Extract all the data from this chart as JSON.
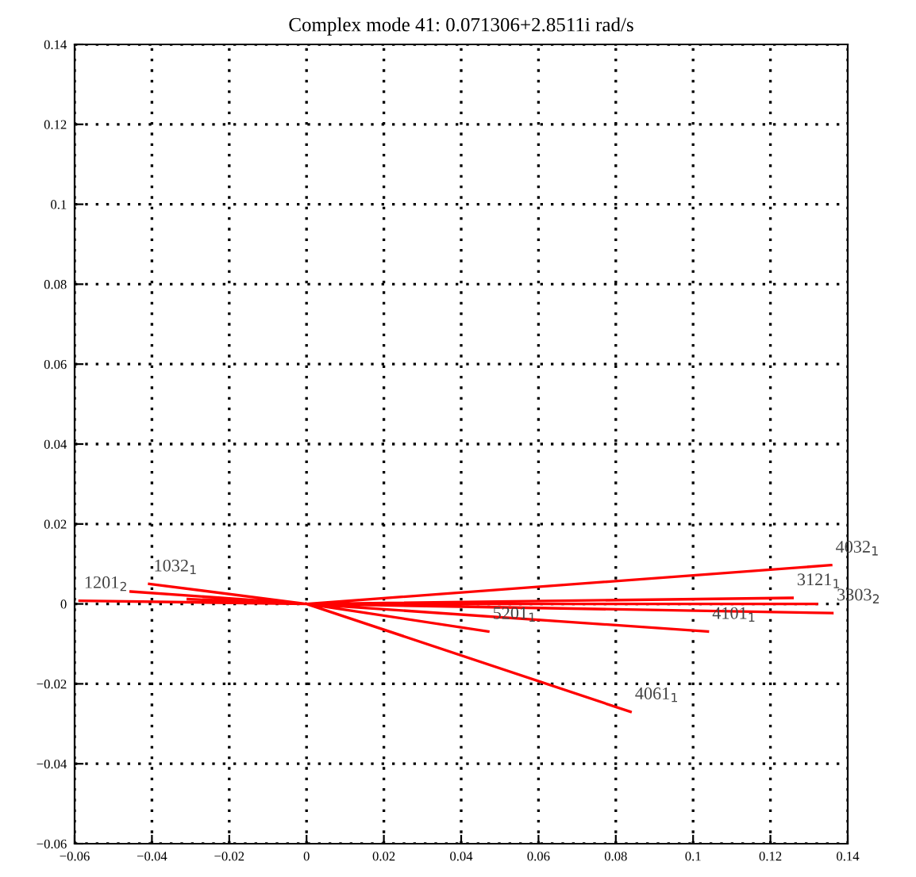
{
  "chart_data": {
    "type": "line",
    "title": "Complex mode 41: 0.071306+2.8511i rad/s",
    "series": [
      {
        "color": "#ff0000",
        "x": [
          0,
          0.1357,
          null,
          0,
          0.1257,
          null,
          0,
          0.132,
          null,
          0,
          0.136,
          null,
          0,
          0.1038,
          null,
          0,
          0.047,
          null,
          0,
          0.0838,
          null,
          0,
          -0.0587,
          null,
          0,
          -0.0407,
          null,
          0,
          -0.0455,
          null,
          0,
          -0.0307
        ],
        "values": [
          0,
          0.0097,
          null,
          0,
          0.0015,
          null,
          0,
          0.0,
          null,
          0,
          -0.0023,
          null,
          0,
          -0.0069,
          null,
          0,
          -0.0069,
          null,
          0,
          -0.027,
          null,
          0,
          0.0008,
          null,
          0,
          0.005,
          null,
          0,
          0.0031,
          null,
          0,
          0.0012
        ]
      }
    ],
    "annotations": [
      {
        "text": "4032$_{1}$",
        "x": 0.1357,
        "y": 0.0097
      },
      {
        "text": "3121$_{1}$",
        "x": 0.1257,
        "y": 0.0015
      },
      {
        "text": "3303$_{2}$",
        "x": 0.136,
        "y": -0.0023
      },
      {
        "text": "4101$_{1}$",
        "x": 0.1038,
        "y": -0.0069
      },
      {
        "text": "5201$_{1}$",
        "x": 0.047,
        "y": -0.0069
      },
      {
        "text": "4061$_{1}$",
        "x": 0.0838,
        "y": -0.027
      },
      {
        "text": "1201$_{2}$",
        "x": -0.0587,
        "y": 0.0008
      },
      {
        "text": "1032$_{1}$",
        "x": -0.0407,
        "y": 0.005
      }
    ],
    "xlim": [
      -0.06,
      0.14
    ],
    "ylim": [
      -0.06,
      0.14
    ],
    "xticks": [
      {
        "value": -0.06,
        "label": "−0.06"
      },
      {
        "value": -0.04,
        "label": "−0.04"
      },
      {
        "value": -0.02,
        "label": "−0.02"
      },
      0,
      0.02,
      0.04,
      0.06,
      0.08,
      0.1,
      0.12,
      0.14
    ],
    "yticks": [
      {
        "value": -0.06,
        "label": "−0.06"
      },
      {
        "value": -0.04,
        "label": "−0.04"
      },
      {
        "value": -0.02,
        "label": "−0.02"
      },
      0,
      0.02,
      0.04,
      0.06,
      0.08,
      0.1,
      0.12,
      0.14
    ],
    "grid": true,
    "line_style": "solid",
    "marker": "none"
  }
}
